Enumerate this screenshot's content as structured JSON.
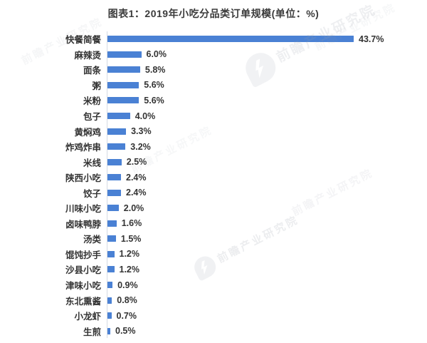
{
  "title": "图表1：2019年小吃分品类订单规模(单位：%)",
  "watermark": {
    "text": "前瞻产业研究院"
  },
  "colors": {
    "bar": "#4a81d4",
    "title_text": "#3b3b3b",
    "label_text": "#333333",
    "axis_line": "#d6dbe4",
    "watermark_gray": "#99a0ac",
    "watermark_red": "#d98c8c"
  },
  "chart_data": {
    "type": "bar",
    "orientation": "horizontal",
    "title": "图表1：2019年小吃分品类订单规模(单位：%)",
    "unit": "%",
    "grid": false,
    "xlim": [
      0,
      45
    ],
    "value_label_position": "end-of-bar",
    "categories": [
      "快餐简餐",
      "麻辣烫",
      "面条",
      "粥",
      "米粉",
      "包子",
      "黄焖鸡",
      "炸鸡炸串",
      "米线",
      "陕西小吃",
      "饺子",
      "川味小吃",
      "卤味鸭脖",
      "汤类",
      "馄饨抄手",
      "沙县小吃",
      "津味小吃",
      "东北熏酱",
      "小龙虾",
      "生煎"
    ],
    "values": [
      43.7,
      6.0,
      5.8,
      5.6,
      5.6,
      4.0,
      3.3,
      3.2,
      2.5,
      2.4,
      2.4,
      2.0,
      1.6,
      1.5,
      1.2,
      1.2,
      0.9,
      0.8,
      0.7,
      0.5
    ],
    "value_labels": [
      "43.7%",
      "6.0%",
      "5.8%",
      "5.6%",
      "5.6%",
      "4.0%",
      "3.3%",
      "3.2%",
      "2.5%",
      "2.4%",
      "2.4%",
      "2.0%",
      "1.6%",
      "1.5%",
      "1.2%",
      "1.2%",
      "0.9%",
      "0.8%",
      "0.7%",
      "0.5%"
    ]
  }
}
